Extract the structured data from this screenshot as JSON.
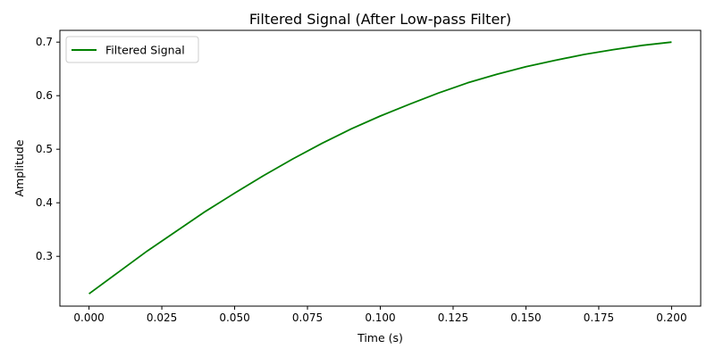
{
  "chart_data": {
    "type": "line",
    "title": "Filtered Signal (After Low-pass Filter)",
    "xlabel": "Time (s)",
    "ylabel": "Amplitude",
    "xlim": [
      -0.01,
      0.21
    ],
    "ylim": [
      0.207,
      0.722
    ],
    "xticks": [
      0.0,
      0.025,
      0.05,
      0.075,
      0.1,
      0.125,
      0.15,
      0.175,
      0.2
    ],
    "xtick_labels": [
      "0.000",
      "0.025",
      "0.050",
      "0.075",
      "0.100",
      "0.125",
      "0.150",
      "0.175",
      "0.200"
    ],
    "yticks": [
      0.3,
      0.4,
      0.5,
      0.6,
      0.7
    ],
    "ytick_labels": [
      "0.3",
      "0.4",
      "0.5",
      "0.6",
      "0.7"
    ],
    "grid": false,
    "legend_position": "top-left",
    "series": [
      {
        "name": "Filtered Signal",
        "color": "#008000",
        "x": [
          0.0,
          0.01,
          0.02,
          0.03,
          0.04,
          0.05,
          0.06,
          0.07,
          0.08,
          0.09,
          0.1,
          0.11,
          0.12,
          0.13,
          0.14,
          0.15,
          0.16,
          0.17,
          0.18,
          0.19,
          0.2
        ],
        "y": [
          0.23,
          0.27,
          0.31,
          0.347,
          0.384,
          0.418,
          0.451,
          0.482,
          0.511,
          0.538,
          0.562,
          0.584,
          0.605,
          0.624,
          0.64,
          0.654,
          0.666,
          0.677,
          0.686,
          0.694,
          0.7
        ]
      }
    ]
  }
}
